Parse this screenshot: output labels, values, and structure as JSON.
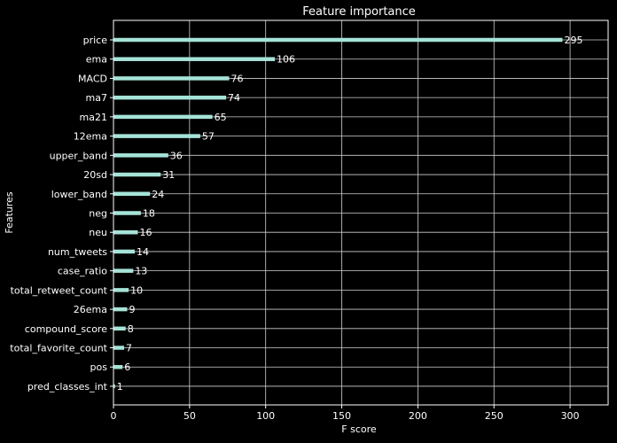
{
  "chart_data": {
    "type": "bar",
    "orientation": "horizontal",
    "title": "Feature importance",
    "xlabel": "F score",
    "ylabel": "Features",
    "categories": [
      "price",
      "ema",
      "MACD",
      "ma7",
      "ma21",
      "12ema",
      "upper_band",
      "20sd",
      "lower_band",
      "neg",
      "neu",
      "num_tweets",
      "case_ratio",
      "total_retweet_count",
      "26ema",
      "compound_score",
      "total_favorite_count",
      "pos",
      "pred_classes_int"
    ],
    "values": [
      295,
      106,
      76,
      74,
      65,
      57,
      36,
      31,
      24,
      18,
      16,
      14,
      13,
      10,
      9,
      8,
      7,
      6,
      1
    ],
    "xlim": [
      0,
      325
    ],
    "xticks": [
      0,
      50,
      100,
      150,
      200,
      250,
      300
    ],
    "grid": true,
    "colors": {
      "background": "#000000",
      "bar": "#a5e3d8",
      "grid": "#cfcfcf",
      "text": "#ffffff",
      "axis": "#ffffff"
    }
  }
}
